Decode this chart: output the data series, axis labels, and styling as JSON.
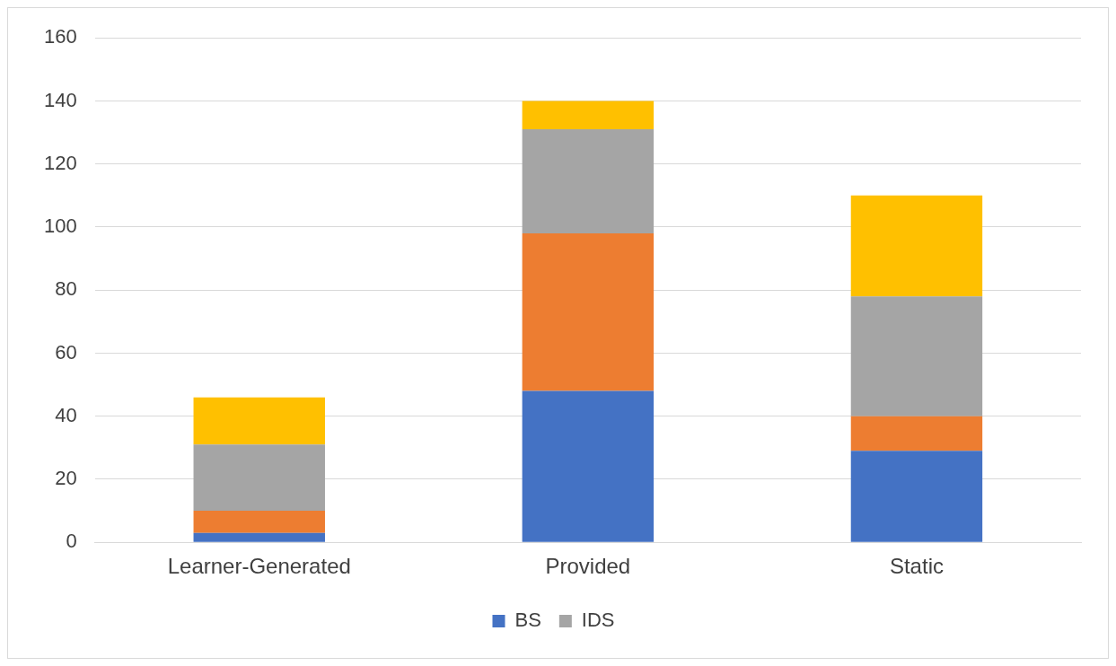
{
  "chart_data": {
    "type": "bar",
    "stacked": true,
    "categories": [
      "Learner-Generated",
      "Provided",
      "Static"
    ],
    "series": [
      {
        "name": "BS",
        "color": "#4472c4",
        "values": [
          3,
          48,
          29
        ]
      },
      {
        "color": "#ed7d31",
        "values": [
          7,
          50,
          11
        ]
      },
      {
        "name": "IDS",
        "color": "#a5a5a5",
        "values": [
          21,
          33,
          38
        ]
      },
      {
        "color": "#ffc000",
        "values": [
          15,
          9,
          32
        ]
      }
    ],
    "ylim": [
      0,
      160
    ],
    "yticks": [
      0,
      20,
      40,
      60,
      80,
      100,
      120,
      140,
      160
    ],
    "grid": "y",
    "legend": "bottom"
  }
}
